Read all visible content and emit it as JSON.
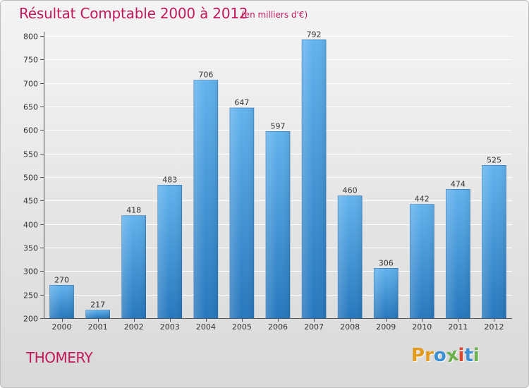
{
  "header": {
    "title": "Résultat Comptable 2000 à 2012",
    "subtitle": "(en milliers d'€)"
  },
  "footer": {
    "city": "THOMERY",
    "logo": {
      "text": "Proxiti",
      "letters": [
        {
          "char": "P",
          "color": "#e39b1e"
        },
        {
          "char": "r",
          "color": "#e39b1e"
        },
        {
          "char": "o",
          "color": "#3b8fd4"
        },
        {
          "char": "x",
          "color": "#6ab04c"
        },
        {
          "char": "i",
          "color": "#d8462d"
        },
        {
          "char": "t",
          "color": "#3b8fd4"
        },
        {
          "char": "i",
          "color": "#6ab04c"
        }
      ]
    }
  },
  "colors": {
    "accent": "#c2185b",
    "bar_light": "#5fb0ec",
    "bar_dark": "#2a7fc4",
    "grid": "#ffffff"
  },
  "chart_data": {
    "type": "bar",
    "title": "Résultat Comptable 2000 à 2012",
    "subtitle": "(en milliers d'€)",
    "xlabel": "",
    "ylabel": "",
    "categories": [
      "2000",
      "2001",
      "2002",
      "2003",
      "2004",
      "2005",
      "2006",
      "2007",
      "2008",
      "2009",
      "2010",
      "2011",
      "2012"
    ],
    "values": [
      270,
      217,
      418,
      483,
      706,
      647,
      597,
      792,
      460,
      306,
      442,
      474,
      525
    ],
    "ylim": [
      200,
      800
    ],
    "yticks": [
      200,
      250,
      300,
      350,
      400,
      450,
      500,
      550,
      600,
      650,
      700,
      750,
      800
    ],
    "grid": true,
    "legend": "none"
  }
}
